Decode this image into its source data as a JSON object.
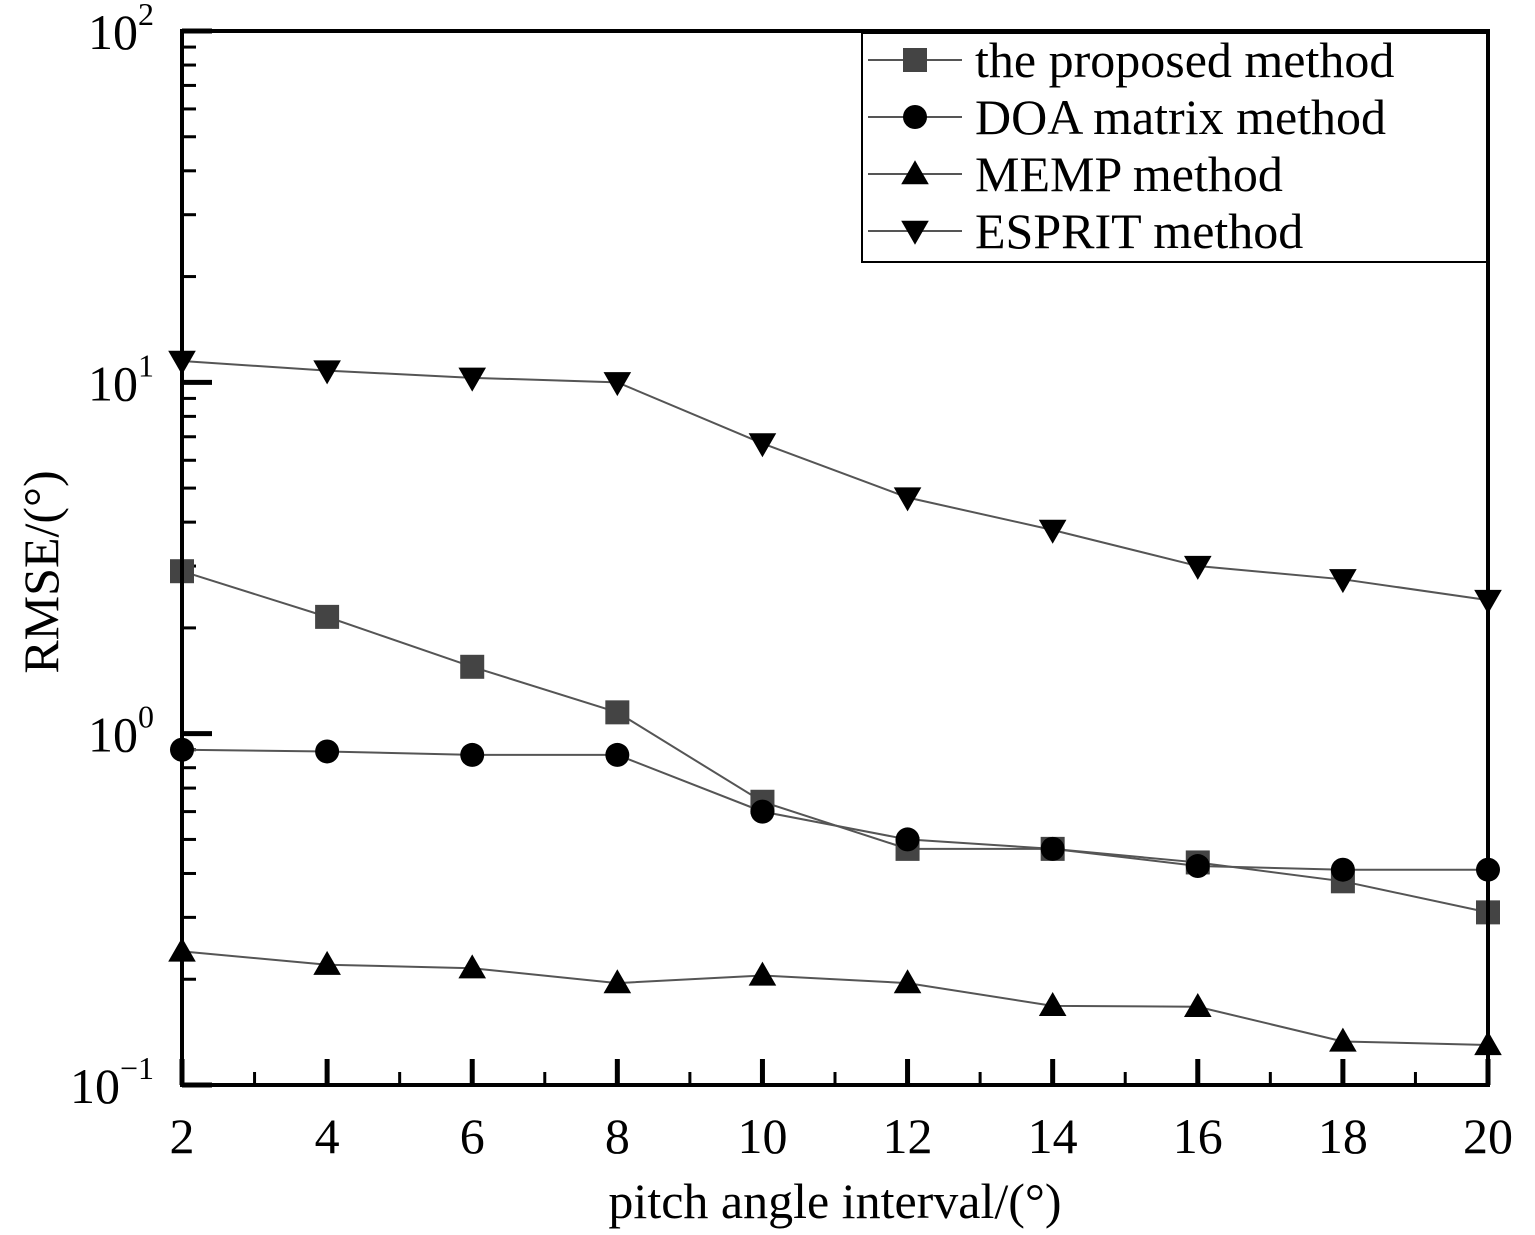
{
  "chart_data": {
    "type": "line",
    "title": "",
    "xlabel": "pitch angle interval/(°)",
    "ylabel": "RMSE/(°)",
    "y_scale": "log",
    "xlim": [
      2,
      20
    ],
    "ylim": [
      0.1,
      100
    ],
    "grid": false,
    "legend_position": "top-right",
    "x": [
      2,
      4,
      6,
      8,
      10,
      12,
      14,
      16,
      18,
      20
    ],
    "x_tick_labels": [
      "2",
      "4",
      "6",
      "8",
      "10",
      "12",
      "14",
      "16",
      "18",
      "20"
    ],
    "y_ticks": [
      {
        "value": 0.1,
        "base": "10",
        "exp": "−1"
      },
      {
        "value": 1,
        "base": "10",
        "exp": "0"
      },
      {
        "value": 10,
        "base": "10",
        "exp": "1"
      },
      {
        "value": 100,
        "base": "10",
        "exp": "2"
      }
    ],
    "series": [
      {
        "name": "the proposed method",
        "marker": "square",
        "color": "#444444",
        "values": [
          2.9,
          2.15,
          1.55,
          1.15,
          0.64,
          0.47,
          0.47,
          0.43,
          0.38,
          0.31
        ]
      },
      {
        "name": "DOA matrix method",
        "marker": "circle",
        "color": "#000000",
        "values": [
          0.9,
          0.89,
          0.87,
          0.87,
          0.6,
          0.5,
          0.47,
          0.42,
          0.41,
          0.41
        ]
      },
      {
        "name": "MEMP method",
        "marker": "triangle-up",
        "color": "#000000",
        "values": [
          0.24,
          0.22,
          0.215,
          0.195,
          0.205,
          0.195,
          0.168,
          0.167,
          0.133,
          0.13
        ]
      },
      {
        "name": "ESPRIT method",
        "marker": "triangle-down",
        "color": "#000000",
        "values": [
          11.5,
          10.8,
          10.3,
          10.0,
          6.7,
          4.7,
          3.8,
          3.0,
          2.75,
          2.4
        ]
      }
    ]
  }
}
